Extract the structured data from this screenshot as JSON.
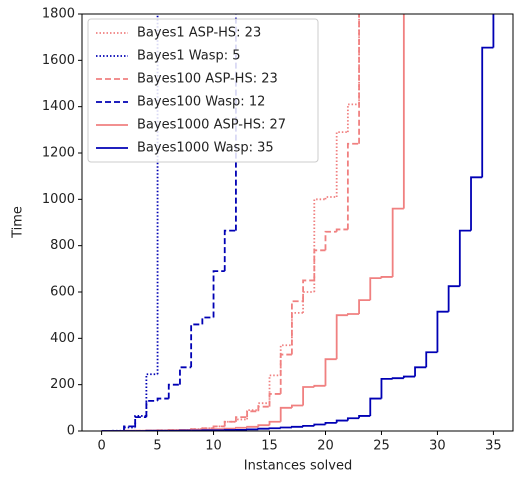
{
  "chart_data": {
    "type": "step",
    "xlabel": "Instances solved",
    "ylabel": "Time",
    "xlim": [
      -1.75,
      36.75
    ],
    "ylim": [
      0,
      1800
    ],
    "xticks": [
      0,
      5,
      10,
      15,
      20,
      25,
      30,
      35
    ],
    "yticks": [
      0,
      200,
      400,
      600,
      800,
      1000,
      1200,
      1400,
      1600,
      1800
    ],
    "legend": "upper left",
    "series": [
      {
        "name": "Bayes1 ASP-HS: 23",
        "color": "#f08080",
        "linestyle": "dotted",
        "x": [
          0,
          1,
          2,
          3,
          4,
          5,
          6,
          7,
          8,
          9,
          10,
          11,
          12,
          13,
          14,
          15,
          16,
          17,
          18,
          19,
          20,
          21,
          22,
          23
        ],
        "values": [
          0,
          0,
          1,
          1,
          2,
          3,
          4,
          5,
          8,
          12,
          20,
          40,
          50,
          90,
          120,
          240,
          370,
          510,
          600,
          1000,
          1010,
          1290,
          1410,
          1800
        ]
      },
      {
        "name": "Bayes1 Wasp: 5",
        "color": "#0000b4",
        "linestyle": "dotted",
        "x": [
          0,
          1,
          2,
          3,
          4,
          5
        ],
        "values": [
          0,
          1,
          15,
          65,
          245,
          1800
        ]
      },
      {
        "name": "Bayes100 ASP-HS: 23",
        "color": "#f08080",
        "linestyle": "dashed",
        "x": [
          0,
          1,
          2,
          3,
          4,
          5,
          6,
          7,
          8,
          9,
          10,
          11,
          12,
          13,
          14,
          15,
          16,
          17,
          18,
          19,
          20,
          21,
          22,
          23
        ],
        "values": [
          0,
          0,
          1,
          1,
          2,
          3,
          4,
          5,
          8,
          12,
          20,
          40,
          60,
          85,
          105,
          160,
          330,
          560,
          650,
          780,
          860,
          870,
          1240,
          1800
        ]
      },
      {
        "name": "Bayes100 Wasp: 12",
        "color": "#0000b4",
        "linestyle": "dashed",
        "x": [
          0,
          1,
          2,
          3,
          4,
          5,
          6,
          7,
          8,
          9,
          10,
          11,
          12
        ],
        "values": [
          0,
          0,
          20,
          60,
          130,
          140,
          200,
          275,
          460,
          490,
          690,
          865,
          1800
        ]
      },
      {
        "name": "Bayes1000 ASP-HS: 27",
        "color": "#f08080",
        "linestyle": "solid",
        "x": [
          0,
          1,
          2,
          3,
          4,
          5,
          6,
          7,
          8,
          9,
          10,
          11,
          12,
          13,
          14,
          15,
          16,
          17,
          18,
          19,
          20,
          21,
          22,
          23,
          24,
          25,
          26,
          27
        ],
        "values": [
          0,
          0,
          1,
          1,
          2,
          2,
          3,
          4,
          5,
          6,
          8,
          10,
          14,
          18,
          25,
          40,
          100,
          110,
          190,
          195,
          310,
          500,
          505,
          565,
          660,
          665,
          960,
          1800
        ]
      },
      {
        "name": "Bayes1000 Wasp: 35",
        "color": "#0000b4",
        "linestyle": "solid",
        "x": [
          0,
          1,
          2,
          3,
          4,
          5,
          6,
          7,
          8,
          9,
          10,
          11,
          12,
          13,
          14,
          15,
          16,
          17,
          18,
          19,
          20,
          21,
          22,
          23,
          24,
          25,
          26,
          27,
          28,
          29,
          30,
          31,
          32,
          33,
          34,
          35
        ],
        "values": [
          0,
          0,
          0,
          0,
          1,
          1,
          1,
          2,
          2,
          3,
          3,
          4,
          5,
          7,
          10,
          12,
          15,
          18,
          22,
          28,
          35,
          45,
          55,
          65,
          140,
          225,
          228,
          235,
          275,
          340,
          515,
          625,
          865,
          1095,
          1655,
          1800
        ]
      }
    ]
  }
}
